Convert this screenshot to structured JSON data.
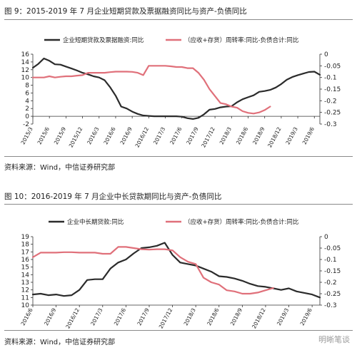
{
  "figure9": {
    "title": "图 9：2015-2019 年 7 月企业短期贷款及票据融资同比与资产-负债同比",
    "source": "资料来源：Wind，中信证券研究部",
    "chart_data": {
      "type": "line",
      "x": [
        "2015/3",
        "2015/4",
        "2015/5",
        "2015/6",
        "2015/7",
        "2015/8",
        "2015/9",
        "2015/10",
        "2015/11",
        "2015/12",
        "2016/1",
        "2016/2",
        "2016/3",
        "2016/4",
        "2016/5",
        "2016/6",
        "2016/7",
        "2016/8",
        "2016/9",
        "2016/10",
        "2016/11",
        "2016/12",
        "2017/1",
        "2017/2",
        "2017/3",
        "2017/4",
        "2017/5",
        "2017/6",
        "2017/7",
        "2017/8",
        "2017/9",
        "2017/10",
        "2017/11",
        "2017/12",
        "2018/1",
        "2018/2",
        "2018/3",
        "2018/4",
        "2018/5",
        "2018/6",
        "2018/7",
        "2018/8",
        "2018/9",
        "2018/10",
        "2018/11",
        "2018/12",
        "2019/1",
        "2019/2",
        "2019/3",
        "2019/4",
        "2019/5",
        "2019/6",
        "2019/7"
      ],
      "tick_labels": [
        "2015/3",
        "2015/6",
        "2015/9",
        "2015/12",
        "2016/3",
        "2016/6",
        "2016/9",
        "2016/12",
        "2017/3",
        "2017/6",
        "2017/9",
        "2017/12",
        "2018/3",
        "2018/6",
        "2018/9",
        "2018/12",
        "2019/3",
        "2019/6"
      ],
      "series": [
        {
          "name": "企业短期贷款及票据融资:同比",
          "axis": "left",
          "color": "#2b2b2b",
          "values": [
            12.5,
            13.5,
            14.9,
            14.3,
            13.4,
            13.3,
            12.8,
            12.3,
            11.8,
            11.2,
            10.8,
            10.3,
            10.0,
            9.3,
            7.5,
            5.3,
            2.5,
            2.0,
            1.2,
            0.6,
            0.2,
            0.1,
            0.0,
            0.0,
            0.0,
            0.0,
            0.0,
            -0.1,
            -0.5,
            -0.7,
            -0.4,
            0.5,
            1.7,
            1.9,
            2.3,
            2.5,
            2.6,
            3.6,
            4.4,
            4.9,
            5.4,
            6.3,
            6.5,
            6.8,
            7.4,
            8.3,
            9.4,
            10.1,
            10.6,
            11.0,
            11.4,
            11.5,
            10.7
          ]
        },
        {
          "name": "（应收+存货）周转率:同比-负债合计:同比",
          "axis": "right",
          "color": "#e0707a",
          "values": [
            -0.1,
            -0.1,
            -0.1,
            -0.095,
            -0.1,
            -0.097,
            -0.095,
            -0.095,
            -0.092,
            -0.09,
            -0.08,
            -0.08,
            -0.08,
            -0.08,
            -0.077,
            -0.075,
            -0.075,
            -0.075,
            -0.076,
            -0.08,
            -0.09,
            -0.05,
            -0.05,
            -0.05,
            -0.05,
            -0.052,
            -0.055,
            -0.055,
            -0.06,
            -0.06,
            -0.08,
            -0.11,
            -0.15,
            -0.18,
            -0.21,
            -0.215,
            -0.225,
            -0.23,
            -0.245,
            -0.252,
            -0.255,
            -0.25,
            -0.24,
            -0.225,
            null,
            null,
            null,
            null,
            null,
            null,
            null,
            null,
            null
          ]
        }
      ],
      "ylim_left": [
        -2,
        16
      ],
      "yticks_left": [
        -2,
        0,
        2,
        4,
        6,
        8,
        10,
        12,
        14,
        16
      ],
      "ylim_right": [
        -0.3,
        0
      ],
      "yticks_right": [
        0,
        -0.05,
        -0.1,
        -0.15,
        -0.2,
        -0.25,
        -0.3
      ],
      "legend_position": "top"
    }
  },
  "figure10": {
    "title": "图 10：2016-2019 年 7 月企业中长贷款期同比与资产-负债同比",
    "source": "资料来源：Wind，中信证券研究部",
    "watermark": "明晰笔谈",
    "chart_data": {
      "type": "line",
      "x": [
        "2016/6",
        "2016/7",
        "2016/8",
        "2016/9",
        "2016/10",
        "2016/11",
        "2016/12",
        "2017/1",
        "2017/2",
        "2017/3",
        "2017/4",
        "2017/5",
        "2017/6",
        "2017/7",
        "2017/8",
        "2017/9",
        "2017/10",
        "2017/11",
        "2017/12",
        "2018/1",
        "2018/2",
        "2018/3",
        "2018/4",
        "2018/5",
        "2018/6",
        "2018/7",
        "2018/8",
        "2018/9",
        "2018/10",
        "2018/11",
        "2018/12",
        "2019/1",
        "2019/2",
        "2019/3",
        "2019/4",
        "2019/5",
        "2019/6",
        "2019/7"
      ],
      "tick_labels": [
        "2016/6",
        "2016/9",
        "2016/12",
        "2017/3",
        "2017/6",
        "2017/9",
        "2017/12",
        "2018/3",
        "2018/6",
        "2018/9",
        "2018/12",
        "2019/3",
        "2019/6"
      ],
      "series": [
        {
          "name": "企业中长期贷款:同比",
          "axis": "left",
          "color": "#2b2b2b",
          "values": [
            11.4,
            11.5,
            11.3,
            11.4,
            11.2,
            11.3,
            12.0,
            13.3,
            13.4,
            13.4,
            14.8,
            15.6,
            16.0,
            16.8,
            17.5,
            17.6,
            17.8,
            18.2,
            16.6,
            15.6,
            15.4,
            15.2,
            14.8,
            14.4,
            13.8,
            13.7,
            13.5,
            13.2,
            12.8,
            12.5,
            12.4,
            12.2,
            12.0,
            12.2,
            11.8,
            11.6,
            11.4,
            11.0
          ]
        },
        {
          "name": "（应收+存货）周转率:同比-负债合计:同比",
          "axis": "right",
          "color": "#e0707a",
          "values": [
            -0.09,
            -0.07,
            -0.07,
            -0.07,
            -0.068,
            -0.068,
            -0.07,
            -0.07,
            -0.07,
            -0.075,
            -0.075,
            -0.045,
            -0.045,
            -0.05,
            -0.055,
            -0.057,
            -0.055,
            -0.055,
            -0.06,
            -0.09,
            -0.11,
            -0.12,
            -0.18,
            -0.2,
            -0.21,
            -0.235,
            -0.24,
            -0.25,
            -0.25,
            -0.245,
            -0.235,
            -0.225,
            null,
            null,
            null,
            null,
            null,
            null
          ]
        }
      ],
      "ylim_left": [
        10,
        19
      ],
      "yticks_left": [
        10,
        11,
        12,
        13,
        14,
        15,
        16,
        17,
        18,
        19
      ],
      "ylim_right": [
        -0.3,
        0
      ],
      "yticks_right": [
        0,
        -0.05,
        -0.1,
        -0.15,
        -0.2,
        -0.25,
        -0.3
      ],
      "legend_position": "top"
    }
  }
}
